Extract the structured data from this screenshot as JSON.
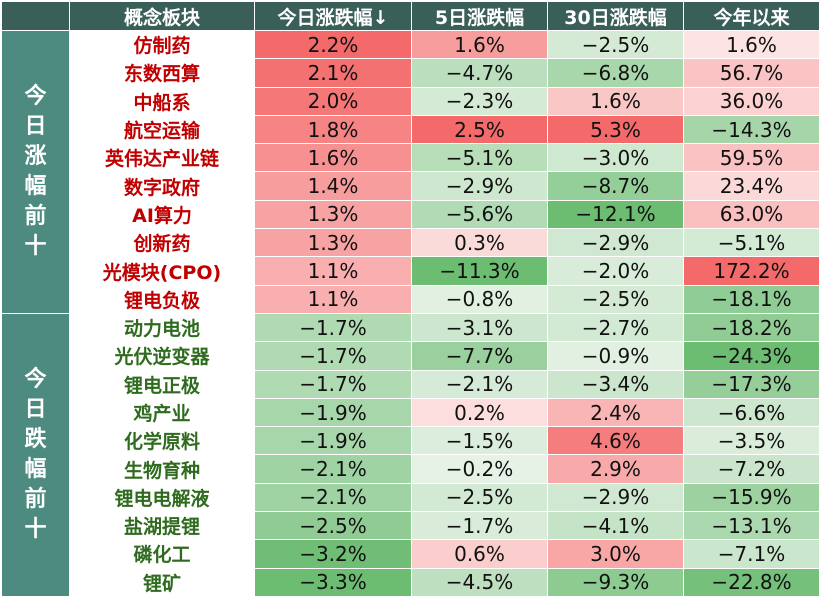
{
  "chart_data": {
    "type": "table",
    "headers": [
      "",
      "概念板块",
      "今日涨跌幅↓",
      "5日涨跌幅",
      "30日涨跌幅",
      "今年以来"
    ],
    "groups": [
      {
        "label": "今日涨幅前十",
        "bg": "#4d8a80",
        "name_color": "#c00000",
        "rows": [
          {
            "name": "仿制药",
            "values": [
              "2.2%",
              "1.6%",
              "−2.5%",
              "1.6%"
            ],
            "nums": [
              2.2,
              1.6,
              -2.5,
              1.6
            ]
          },
          {
            "name": "东数西算",
            "values": [
              "2.1%",
              "−4.7%",
              "−6.8%",
              "56.7%"
            ],
            "nums": [
              2.1,
              -4.7,
              -6.8,
              56.7
            ]
          },
          {
            "name": "中船系",
            "values": [
              "2.0%",
              "−2.3%",
              "1.6%",
              "36.0%"
            ],
            "nums": [
              2.0,
              -2.3,
              1.6,
              36.0
            ]
          },
          {
            "name": "航空运输",
            "values": [
              "1.8%",
              "2.5%",
              "5.3%",
              "−14.3%"
            ],
            "nums": [
              1.8,
              2.5,
              5.3,
              -14.3
            ]
          },
          {
            "name": "英伟达产业链",
            "values": [
              "1.6%",
              "−5.1%",
              "−3.0%",
              "59.5%"
            ],
            "nums": [
              1.6,
              -5.1,
              -3.0,
              59.5
            ]
          },
          {
            "name": "数字政府",
            "values": [
              "1.4%",
              "−2.9%",
              "−8.7%",
              "23.4%"
            ],
            "nums": [
              1.4,
              -2.9,
              -8.7,
              23.4
            ]
          },
          {
            "name": "AI算力",
            "values": [
              "1.3%",
              "−5.6%",
              "−12.1%",
              "63.0%"
            ],
            "nums": [
              1.3,
              -5.6,
              -12.1,
              63.0
            ]
          },
          {
            "name": "创新药",
            "values": [
              "1.3%",
              "0.3%",
              "−2.9%",
              "−5.1%"
            ],
            "nums": [
              1.3,
              0.3,
              -2.9,
              -5.1
            ]
          },
          {
            "name": "光模块(CPO)",
            "values": [
              "1.1%",
              "−11.3%",
              "−2.0%",
              "172.2%"
            ],
            "nums": [
              1.1,
              -11.3,
              -2.0,
              172.2
            ]
          },
          {
            "name": "锂电负极",
            "values": [
              "1.1%",
              "−0.8%",
              "−2.5%",
              "−18.1%"
            ],
            "nums": [
              1.1,
              -0.8,
              -2.5,
              -18.1
            ]
          }
        ]
      },
      {
        "label": "今日跌幅前十",
        "bg": "#4d8a80",
        "name_color": "#2e6b1e",
        "rows": [
          {
            "name": "动力电池",
            "values": [
              "−1.7%",
              "−3.1%",
              "−2.7%",
              "−18.2%"
            ],
            "nums": [
              -1.7,
              -3.1,
              -2.7,
              -18.2
            ]
          },
          {
            "name": "光伏逆变器",
            "values": [
              "−1.7%",
              "−7.7%",
              "−0.9%",
              "−24.3%"
            ],
            "nums": [
              -1.7,
              -7.7,
              -0.9,
              -24.3
            ]
          },
          {
            "name": "锂电正极",
            "values": [
              "−1.7%",
              "−2.1%",
              "−3.4%",
              "−17.3%"
            ],
            "nums": [
              -1.7,
              -2.1,
              -3.4,
              -17.3
            ]
          },
          {
            "name": "鸡产业",
            "values": [
              "−1.9%",
              "0.2%",
              "2.4%",
              "−6.6%"
            ],
            "nums": [
              -1.9,
              0.2,
              2.4,
              -6.6
            ]
          },
          {
            "name": "化学原料",
            "values": [
              "−1.9%",
              "−1.5%",
              "4.6%",
              "−3.5%"
            ],
            "nums": [
              -1.9,
              -1.5,
              4.6,
              -3.5
            ]
          },
          {
            "name": "生物育种",
            "values": [
              "−2.1%",
              "−0.2%",
              "2.9%",
              "−7.2%"
            ],
            "nums": [
              -2.1,
              -0.2,
              2.9,
              -7.2
            ]
          },
          {
            "name": "锂电电解液",
            "values": [
              "−2.1%",
              "−2.5%",
              "−2.9%",
              "−15.9%"
            ],
            "nums": [
              -2.1,
              -2.5,
              -2.9,
              -15.9
            ]
          },
          {
            "name": "盐湖提锂",
            "values": [
              "−2.5%",
              "−1.7%",
              "−4.1%",
              "−13.1%"
            ],
            "nums": [
              -2.5,
              -1.7,
              -4.1,
              -13.1
            ]
          },
          {
            "name": "磷化工",
            "values": [
              "−3.2%",
              "0.6%",
              "3.0%",
              "−7.1%"
            ],
            "nums": [
              -3.2,
              0.6,
              3.0,
              -7.1
            ]
          },
          {
            "name": "锂矿",
            "values": [
              "−3.3%",
              "−4.5%",
              "−9.3%",
              "−22.8%"
            ],
            "nums": [
              -3.3,
              -4.5,
              -9.3,
              -22.8
            ]
          }
        ]
      }
    ],
    "colors": {
      "pos_light": "#fce4e4",
      "pos_strong": "#f46a6a",
      "neg_light": "#e6f2e6",
      "neg_strong": "#6cbc72"
    }
  }
}
